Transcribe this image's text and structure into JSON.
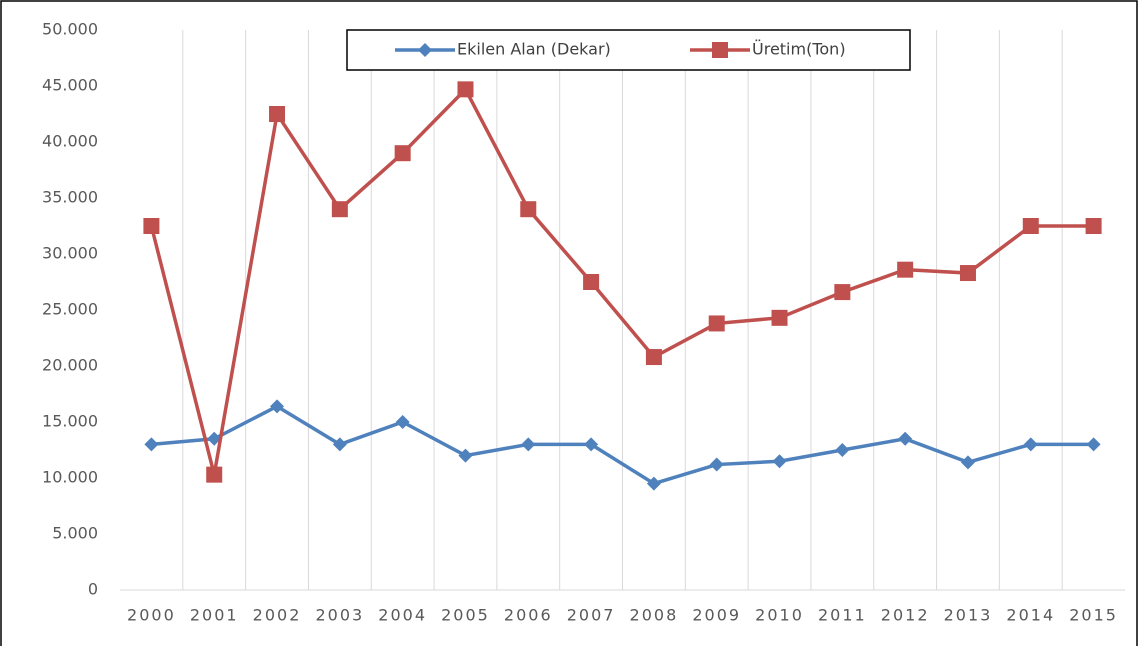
{
  "chart_data": {
    "type": "line",
    "categories": [
      "2000",
      "2001",
      "2002",
      "2003",
      "2004",
      "2005",
      "2006",
      "2007",
      "2008",
      "2009",
      "2010",
      "2011",
      "2012",
      "2013",
      "2014",
      "2015"
    ],
    "series": [
      {
        "name": "Ekilen Alan (Dekar)",
        "color": "#4f81bd",
        "marker": "diamond",
        "values": [
          13000,
          13500,
          16400,
          13000,
          15000,
          12000,
          13000,
          13000,
          9500,
          11200,
          11500,
          12500,
          13500,
          11400,
          13000,
          13000
        ]
      },
      {
        "name": "Üretim(Ton)",
        "color": "#c0504d",
        "marker": "square",
        "values": [
          32500,
          10300,
          42500,
          34000,
          39000,
          44700,
          34000,
          27500,
          20800,
          23800,
          24300,
          26600,
          28600,
          28300,
          32500,
          32500
        ]
      }
    ],
    "ylim": [
      0,
      50000
    ],
    "yticks": [
      0,
      {
        "value": 5000,
        "label": "5.000"
      },
      {
        "value": 10000,
        "label": "10.000"
      },
      {
        "value": 15000,
        "label": "15.000"
      },
      {
        "value": 20000,
        "label": "20.000"
      },
      {
        "value": 25000,
        "label": "25.000"
      },
      {
        "value": 30000,
        "label": "30.000"
      },
      {
        "value": 35000,
        "label": "35.000"
      },
      {
        "value": 40000,
        "label": "40.000"
      },
      {
        "value": 45000,
        "label": "45.000"
      },
      {
        "value": 50000,
        "label": "50.000"
      }
    ],
    "legend": "top"
  }
}
